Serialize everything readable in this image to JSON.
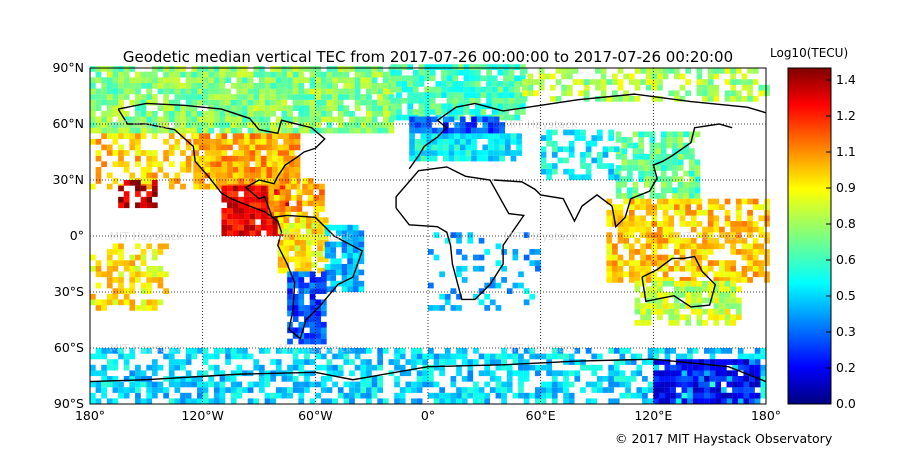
{
  "title": "Geodetic median vertical TEC from 2017-07-26 00:00:00 to 2017-07-26 00:20:00",
  "colorbar": {
    "label": "Log10(TECU)",
    "ticks": [
      "0.0",
      "0.2",
      "0.3",
      "0.5",
      "0.6",
      "0.8",
      "0.9",
      "1.1",
      "1.2",
      "1.4"
    ],
    "range": [
      0.0,
      1.48
    ],
    "colormap": "jet"
  },
  "lat_labels": [
    "90°N",
    "60°N",
    "30°N",
    "0°",
    "30°S",
    "60°S",
    "90°S"
  ],
  "lon_labels": [
    "180°",
    "120°W",
    "60°W",
    "0°",
    "60°E",
    "120°E",
    "180°"
  ],
  "watermark": "MIT Haystack",
  "credit": "© 2017 MIT Haystack Observatory",
  "chart_data": {
    "type": "heatmap",
    "xlim": [
      -180,
      180
    ],
    "ylim": [
      -90,
      90
    ],
    "grid": true,
    "regions": [
      {
        "lon": [
          -180,
          -20
        ],
        "lat": [
          55,
          90
        ],
        "value": 0.75,
        "coverage": 0.9
      },
      {
        "lon": [
          -20,
          50
        ],
        "lat": [
          62,
          90
        ],
        "value": 0.65,
        "coverage": 0.9
      },
      {
        "lon": [
          50,
          180
        ],
        "lat": [
          72,
          90
        ],
        "value": 0.8,
        "coverage": 0.6
      },
      {
        "lon": [
          -10,
          50
        ],
        "lat": [
          40,
          55
        ],
        "value": 0.55,
        "coverage": 0.9
      },
      {
        "lon": [
          -10,
          40
        ],
        "lat": [
          55,
          62
        ],
        "value": 0.3,
        "coverage": 0.9
      },
      {
        "lon": [
          -180,
          -125
        ],
        "lat": [
          25,
          55
        ],
        "value": 1.0,
        "coverage": 0.5
      },
      {
        "lon": [
          -125,
          -70
        ],
        "lat": [
          25,
          55
        ],
        "value": 1.05,
        "coverage": 0.95
      },
      {
        "lon": [
          -110,
          -75
        ],
        "lat": [
          0,
          25
        ],
        "value": 1.32,
        "coverage": 0.95
      },
      {
        "lon": [
          -165,
          -145
        ],
        "lat": [
          15,
          30
        ],
        "value": 1.38,
        "coverage": 0.8
      },
      {
        "lon": [
          -85,
          -55
        ],
        "lat": [
          10,
          30
        ],
        "value": 1.05,
        "coverage": 0.8
      },
      {
        "lon": [
          -80,
          -55
        ],
        "lat": [
          -20,
          10
        ],
        "value": 0.95,
        "coverage": 0.9
      },
      {
        "lon": [
          -55,
          -35
        ],
        "lat": [
          -30,
          5
        ],
        "value": 0.45,
        "coverage": 0.8
      },
      {
        "lon": [
          -75,
          -55
        ],
        "lat": [
          -58,
          -20
        ],
        "value": 0.3,
        "coverage": 0.85
      },
      {
        "lon": [
          -180,
          -140
        ],
        "lat": [
          -40,
          -5
        ],
        "value": 0.95,
        "coverage": 0.5
      },
      {
        "lon": [
          100,
          145
        ],
        "lat": [
          20,
          55
        ],
        "value": 0.7,
        "coverage": 0.8
      },
      {
        "lon": [
          60,
          100
        ],
        "lat": [
          30,
          55
        ],
        "value": 0.55,
        "coverage": 0.5
      },
      {
        "lon": [
          95,
          180
        ],
        "lat": [
          -25,
          20
        ],
        "value": 1.0,
        "coverage": 0.75
      },
      {
        "lon": [
          110,
          165
        ],
        "lat": [
          -48,
          -25
        ],
        "value": 0.85,
        "coverage": 0.8
      },
      {
        "lon": [
          0,
          60
        ],
        "lat": [
          -40,
          0
        ],
        "value": 0.45,
        "coverage": 0.25
      },
      {
        "lon": [
          -180,
          180
        ],
        "lat": [
          -90,
          -62
        ],
        "value": 0.5,
        "coverage": 0.6
      },
      {
        "lon": [
          120,
          175
        ],
        "lat": [
          -90,
          -68
        ],
        "value": 0.2,
        "coverage": 0.8
      }
    ]
  }
}
